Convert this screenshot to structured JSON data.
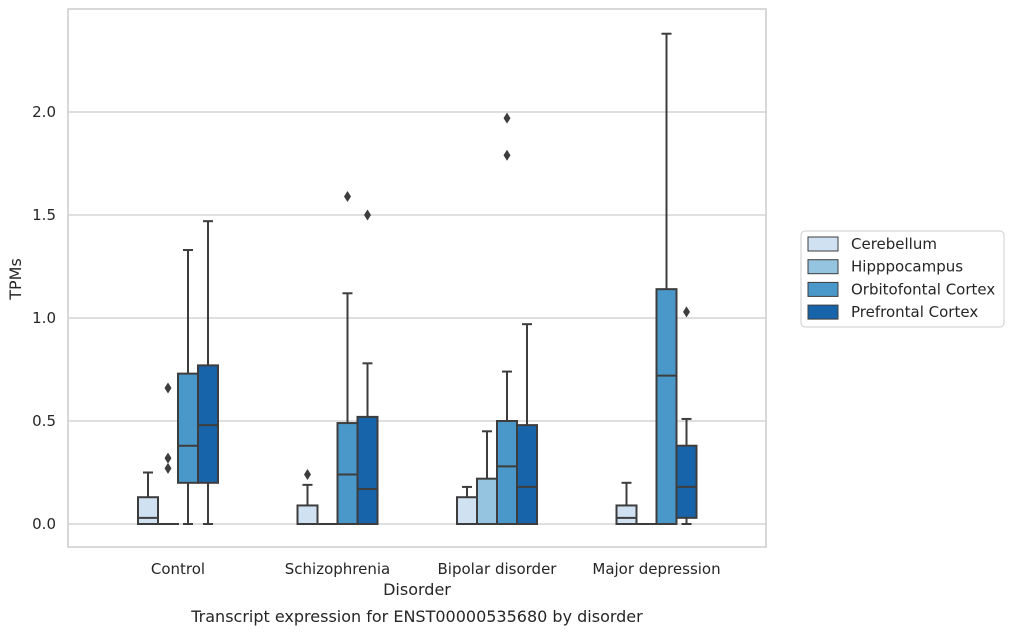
{
  "chart_data": {
    "type": "boxplot",
    "title": "",
    "caption": "Transcript expression for ENST00000535680 by disorder",
    "xlabel": "Disorder",
    "ylabel": "TPMs",
    "ylim": [
      -0.12,
      2.5
    ],
    "yticks": [
      0.0,
      0.5,
      1.0,
      1.5,
      2.0
    ],
    "ytick_labels": [
      "0.0",
      "0.5",
      "1.0",
      "1.5",
      "2.0"
    ],
    "grid": "horizontal",
    "legend_position": "right",
    "categories": [
      "Control",
      "Schizophrenia",
      "Bipolar disorder",
      "Major depression"
    ],
    "series": [
      {
        "name": "Cerebellum",
        "color": "#d0e1f2",
        "boxes": [
          {
            "whislo": 0.0,
            "q1": 0.0,
            "med": 0.03,
            "q3": 0.13,
            "whishi": 0.25,
            "fliers": []
          },
          {
            "whislo": 0.0,
            "q1": 0.0,
            "med": 0.0,
            "q3": 0.09,
            "whishi": 0.19,
            "fliers": [
              0.24
            ]
          },
          {
            "whislo": 0.0,
            "q1": 0.0,
            "med": 0.0,
            "q3": 0.13,
            "whishi": 0.18,
            "fliers": []
          },
          {
            "whislo": 0.0,
            "q1": 0.0,
            "med": 0.03,
            "q3": 0.09,
            "whishi": 0.2,
            "fliers": []
          }
        ]
      },
      {
        "name": "Hipppocampus",
        "color": "#94c4df",
        "boxes": [
          {
            "whislo": 0.0,
            "q1": 0.0,
            "med": 0.0,
            "q3": 0.0,
            "whishi": 0.0,
            "fliers": [
              0.27,
              0.32,
              0.66
            ]
          },
          {
            "whislo": 0.0,
            "q1": 0.0,
            "med": 0.0,
            "q3": 0.0,
            "whishi": 0.0,
            "fliers": []
          },
          {
            "whislo": 0.0,
            "q1": 0.0,
            "med": 0.0,
            "q3": 0.22,
            "whishi": 0.45,
            "fliers": []
          },
          {
            "whislo": 0.0,
            "q1": 0.0,
            "med": 0.0,
            "q3": 0.0,
            "whishi": 0.0,
            "fliers": []
          }
        ]
      },
      {
        "name": "Orbitofontal Cortex",
        "color": "#4a98c9",
        "boxes": [
          {
            "whislo": 0.0,
            "q1": 0.2,
            "med": 0.38,
            "q3": 0.73,
            "whishi": 1.33,
            "fliers": []
          },
          {
            "whislo": 0.0,
            "q1": 0.0,
            "med": 0.24,
            "q3": 0.49,
            "whishi": 1.12,
            "fliers": [
              1.59
            ]
          },
          {
            "whislo": 0.0,
            "q1": 0.0,
            "med": 0.28,
            "q3": 0.5,
            "whishi": 0.74,
            "fliers": [
              1.79,
              1.97
            ]
          },
          {
            "whislo": 0.0,
            "q1": 0.0,
            "med": 0.72,
            "q3": 1.14,
            "whishi": 2.38,
            "fliers": []
          }
        ]
      },
      {
        "name": "Prefrontal Cortex",
        "color": "#1764ab",
        "boxes": [
          {
            "whislo": 0.0,
            "q1": 0.2,
            "med": 0.48,
            "q3": 0.77,
            "whishi": 1.47,
            "fliers": []
          },
          {
            "whislo": 0.0,
            "q1": 0.0,
            "med": 0.17,
            "q3": 0.52,
            "whishi": 0.78,
            "fliers": [
              1.5
            ]
          },
          {
            "whislo": 0.0,
            "q1": 0.0,
            "med": 0.18,
            "q3": 0.48,
            "whishi": 0.97,
            "fliers": []
          },
          {
            "whislo": 0.0,
            "q1": 0.03,
            "med": 0.18,
            "q3": 0.38,
            "whishi": 0.51,
            "fliers": [
              1.03
            ]
          }
        ]
      }
    ]
  }
}
